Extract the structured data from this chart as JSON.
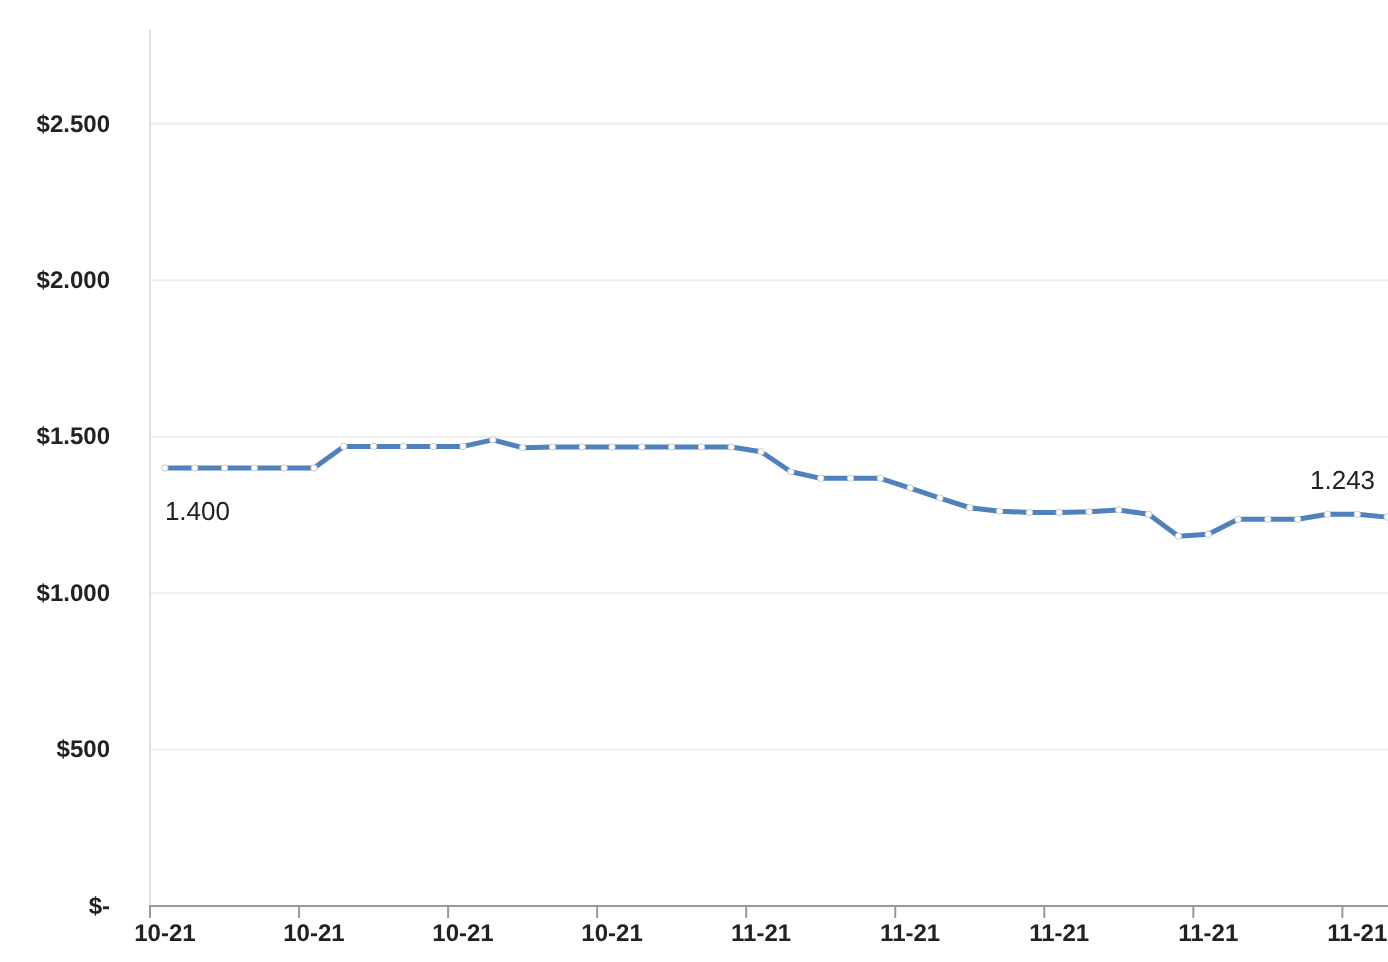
{
  "chart_data": {
    "type": "line",
    "categories": [
      "10-21",
      null,
      null,
      null,
      null,
      "10-21",
      null,
      null,
      null,
      null,
      "10-21",
      null,
      null,
      null,
      null,
      "10-21",
      null,
      null,
      null,
      null,
      "11-21",
      null,
      null,
      null,
      null,
      "11-21",
      null,
      null,
      null,
      null,
      "11-21",
      null,
      null,
      null,
      null,
      "11-21",
      null,
      null,
      null,
      null,
      "11-21",
      null
    ],
    "series": [
      {
        "color": "#4f81bd",
        "values": [
          1400,
          1400,
          1400,
          1400,
          1400,
          1400,
          1469,
          1469,
          1469,
          1469,
          1469,
          1490,
          1465,
          1467,
          1467,
          1467,
          1467,
          1467,
          1467,
          1467,
          1452,
          1388,
          1367,
          1367,
          1367,
          1336,
          1304,
          1273,
          1262,
          1258,
          1258,
          1260,
          1266,
          1252,
          1182,
          1188,
          1236,
          1236,
          1236,
          1252,
          1252,
          1243
        ],
        "value_labels": [
          "1.400",
          null,
          null,
          null,
          null,
          null,
          null,
          null,
          null,
          null,
          null,
          null,
          null,
          null,
          null,
          null,
          null,
          null,
          null,
          null,
          null,
          null,
          null,
          null,
          null,
          null,
          null,
          null,
          null,
          null,
          null,
          null,
          null,
          null,
          null,
          null,
          null,
          null,
          null,
          null,
          null,
          "1.243"
        ]
      }
    ],
    "ylim": [
      0,
      2800
    ],
    "yticks": [
      {
        "value": 0,
        "label": "$-"
      },
      {
        "value": 500,
        "label": "$500"
      },
      {
        "value": 1000,
        "label": "$1.000"
      },
      {
        "value": 1500,
        "label": "$1.500"
      },
      {
        "value": 2000,
        "label": "$2.000"
      },
      {
        "value": 2500,
        "label": "$2.500"
      }
    ],
    "grid": "y",
    "marker": "circle",
    "line_style": "solid"
  }
}
